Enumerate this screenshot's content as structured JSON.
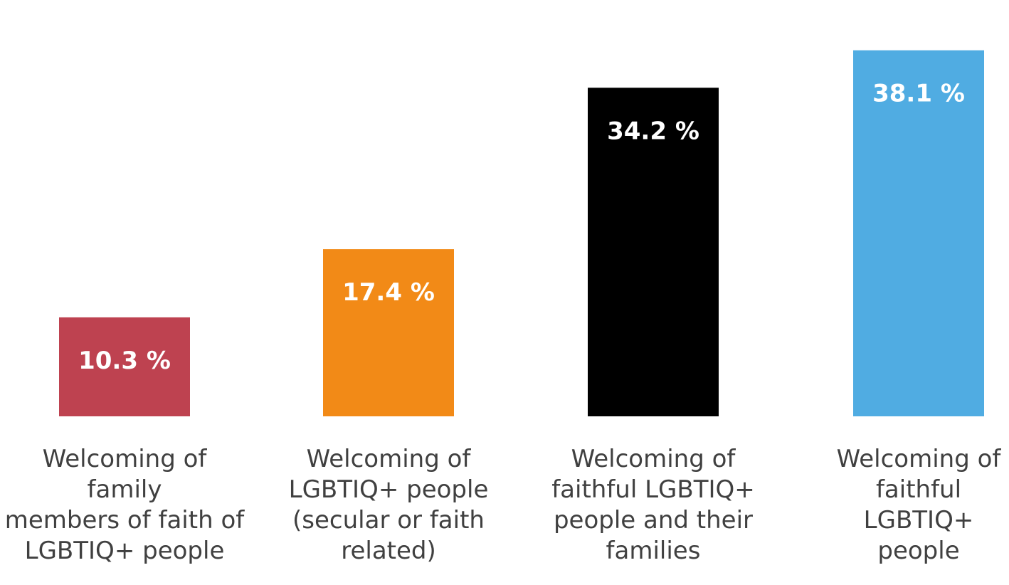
{
  "chart_data": {
    "type": "bar",
    "title": "",
    "xlabel": "",
    "ylabel": "",
    "ylim": [
      0,
      40
    ],
    "grid": false,
    "legend": "none",
    "categories": [
      "Welcoming of family members of faith of LGBTIQ+ people",
      "Welcoming of LGBTIQ+ people (secular or faith related)",
      "Welcoming of faithful LGBTIQ+ people and their families",
      "Welcoming of faithful LGBTIQ+ people"
    ],
    "category_lines": [
      [
        "Welcoming of family",
        "members of faith of",
        "LGBTIQ+ people"
      ],
      [
        "Welcoming of",
        "LGBTIQ+ people",
        "(secular or faith",
        "related)"
      ],
      [
        "Welcoming of",
        "faithful LGBTIQ+",
        "people and their",
        "families"
      ],
      [
        "Welcoming of",
        "faithful",
        "LGBTIQ+",
        "people"
      ]
    ],
    "values": [
      10.3,
      17.4,
      34.2,
      38.1
    ],
    "value_labels": [
      "10.3 %",
      "17.4 %",
      "34.2 %",
      "38.1 %"
    ],
    "colors": [
      "#BE4250",
      "#F28A17",
      "#000000",
      "#50ACE2"
    ]
  }
}
